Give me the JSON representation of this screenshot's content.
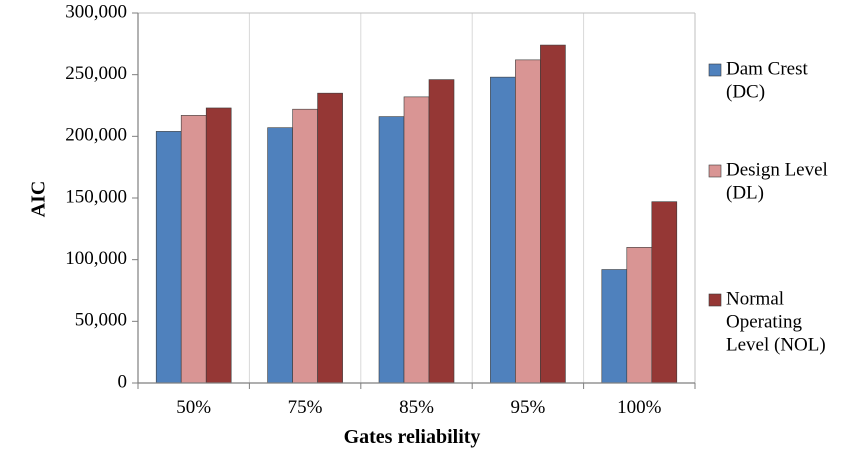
{
  "chart_data": {
    "type": "bar",
    "title": "",
    "xlabel": "Gates reliability",
    "ylabel": "AIC",
    "categories": [
      "50%",
      "75%",
      "85%",
      "95%",
      "100%"
    ],
    "ylim": [
      0,
      300000
    ],
    "yticks": [
      0,
      50000,
      100000,
      150000,
      200000,
      250000,
      300000
    ],
    "ytick_labels": [
      "0",
      "50,000",
      "100,000",
      "150,000",
      "200,000",
      "250,000",
      "300,000"
    ],
    "grid": {
      "vertical": true,
      "horizontal": false
    },
    "legend_position": "right",
    "series": [
      {
        "name_lines": [
          "Dam Crest",
          "(DC)"
        ],
        "color": "#4f81bd",
        "values": [
          204000,
          207000,
          216000,
          248000,
          92000
        ]
      },
      {
        "name_lines": [
          "Design Level",
          "(DL)"
        ],
        "color": "#d99594",
        "values": [
          217000,
          222000,
          232000,
          262000,
          110000
        ]
      },
      {
        "name_lines": [
          "Normal",
          "Operating",
          "Level (NOL)"
        ],
        "color": "#953735",
        "values": [
          223000,
          235000,
          246000,
          274000,
          147000
        ]
      }
    ]
  }
}
